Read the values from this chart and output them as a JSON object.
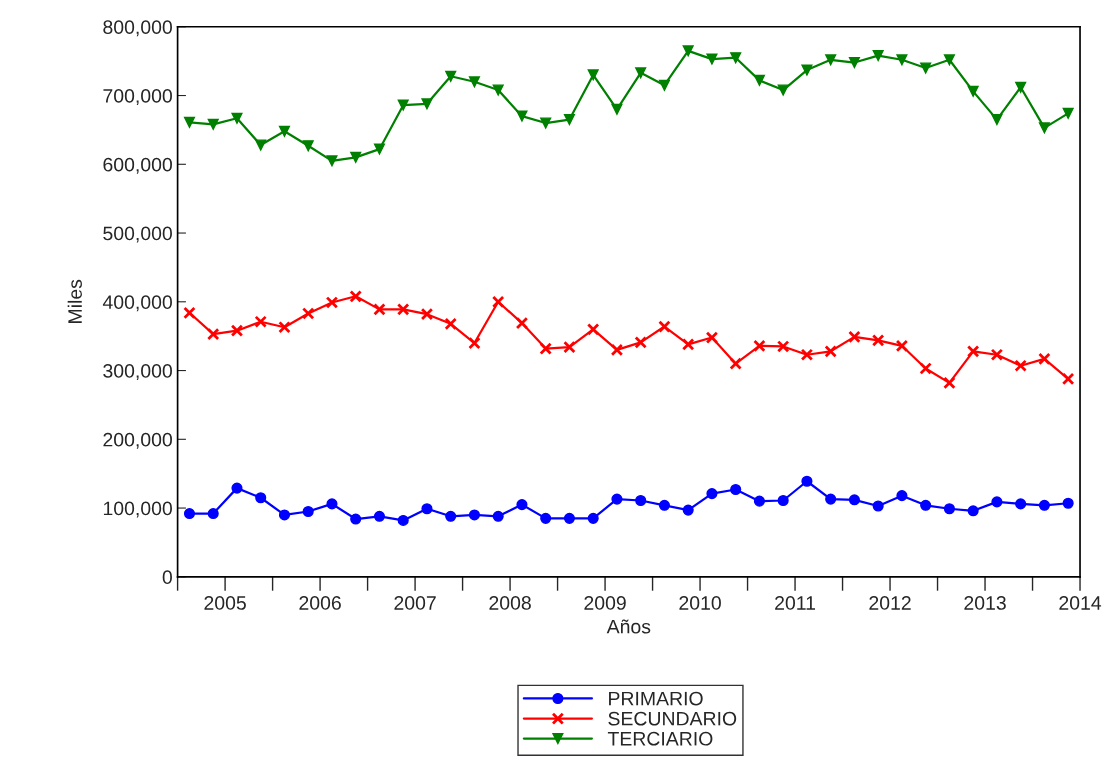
{
  "chart_data": {
    "type": "line",
    "xlabel": "Años",
    "ylabel": "Miles",
    "x": [
      2005.125,
      2005.375,
      2005.625,
      2005.875,
      2006.125,
      2006.375,
      2006.625,
      2006.875,
      2007.125,
      2007.375,
      2007.625,
      2007.875,
      2008.125,
      2008.375,
      2008.625,
      2008.875,
      2009.125,
      2009.375,
      2009.625,
      2009.875,
      2010.125,
      2010.375,
      2010.625,
      2010.875,
      2011.125,
      2011.375,
      2011.625,
      2011.875,
      2012.125,
      2012.375,
      2012.625,
      2012.875,
      2013.125,
      2013.375,
      2013.625,
      2013.875,
      2014.125,
      2014.375
    ],
    "series": [
      {
        "name": "PRIMARIO",
        "color": "#0000ff",
        "marker": "circle",
        "values": [
          92000,
          92000,
          129000,
          115000,
          90000,
          95000,
          106000,
          84000,
          88000,
          82000,
          99000,
          88000,
          90000,
          88000,
          105000,
          85000,
          85000,
          85000,
          113000,
          111000,
          104000,
          97000,
          121000,
          127000,
          110000,
          111000,
          139000,
          113000,
          112000,
          103000,
          118000,
          104000,
          99000,
          96000,
          109000,
          106000,
          104000,
          107000
        ]
      },
      {
        "name": "SECUNDARIO",
        "color": "#ff0000",
        "marker": "cross",
        "values": [
          384000,
          353000,
          358000,
          371000,
          363000,
          383000,
          399000,
          408000,
          389000,
          389000,
          382000,
          368000,
          340000,
          400000,
          369000,
          332000,
          334000,
          360000,
          330000,
          341000,
          364000,
          338000,
          348000,
          310000,
          336000,
          335000,
          323000,
          328000,
          349000,
          344000,
          336000,
          303000,
          282000,
          328000,
          323000,
          307000,
          317000,
          288000
        ]
      },
      {
        "name": "TERCIARIO",
        "color": "#008000",
        "marker": "triangle",
        "values": [
          661000,
          658000,
          667000,
          628000,
          648000,
          627000,
          605000,
          610000,
          622000,
          686000,
          688000,
          728000,
          720000,
          708000,
          670000,
          660000,
          665000,
          730000,
          680000,
          733000,
          715000,
          765000,
          753000,
          755000,
          722000,
          708000,
          737000,
          752000,
          748000,
          758000,
          752000,
          740000,
          752000,
          706000,
          665000,
          712000,
          653000,
          674000
        ]
      }
    ],
    "xlim": [
      2005,
      2014.5
    ],
    "xticks": [
      {
        "value": 2005,
        "label": null
      },
      {
        "value": 2005.5,
        "label": "2005"
      },
      {
        "value": 2006,
        "label": null
      },
      {
        "value": 2006.5,
        "label": "2006"
      },
      {
        "value": 2007,
        "label": null
      },
      {
        "value": 2007.5,
        "label": "2007"
      },
      {
        "value": 2008,
        "label": null
      },
      {
        "value": 2008.5,
        "label": "2008"
      },
      {
        "value": 2009,
        "label": null
      },
      {
        "value": 2009.5,
        "label": "2009"
      },
      {
        "value": 2010,
        "label": null
      },
      {
        "value": 2010.5,
        "label": "2010"
      },
      {
        "value": 2011,
        "label": null
      },
      {
        "value": 2011.5,
        "label": "2011"
      },
      {
        "value": 2012,
        "label": null
      },
      {
        "value": 2012.5,
        "label": "2012"
      },
      {
        "value": 2013,
        "label": null
      },
      {
        "value": 2013.5,
        "label": "2013"
      },
      {
        "value": 2014,
        "label": null
      },
      {
        "value": 2014.5,
        "label": "2014"
      }
    ],
    "ylim": [
      0,
      800000
    ],
    "yticks": [
      {
        "value": 0,
        "label": "0"
      },
      {
        "value": 100000,
        "label": "100,000"
      },
      {
        "value": 200000,
        "label": "200,000"
      },
      {
        "value": 300000,
        "label": "300,000"
      },
      {
        "value": 400000,
        "label": "400,000"
      },
      {
        "value": 500000,
        "label": "500,000"
      },
      {
        "value": 600000,
        "label": "600,000"
      },
      {
        "value": 700000,
        "label": "700,000"
      },
      {
        "value": 800000,
        "label": "800,000"
      }
    ],
    "grid": false,
    "legend": "bottom",
    "line_style": "solid"
  }
}
